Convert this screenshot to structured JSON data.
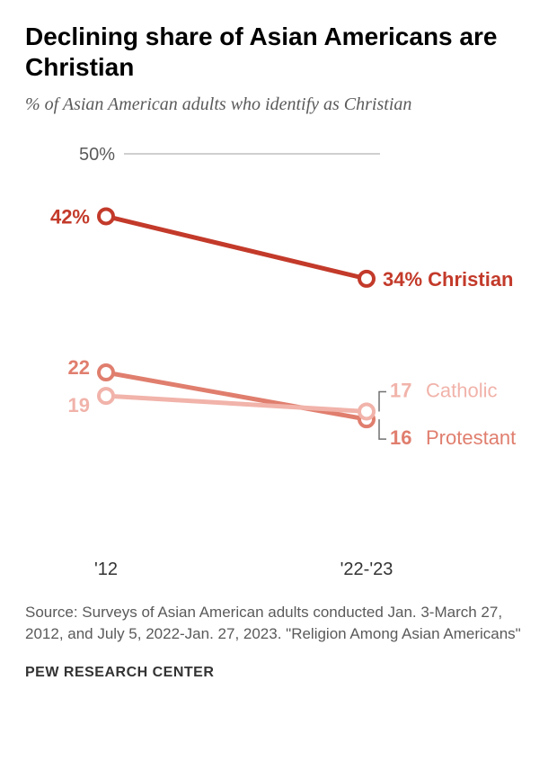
{
  "title": "Declining share of Asian Americans are Christian",
  "subtitle": "% of Asian American adults who identify as Christian",
  "title_fontsize": 28,
  "subtitle_fontsize": 20,
  "chart": {
    "type": "line",
    "x_categories": [
      "'12",
      "'22-'23"
    ],
    "x_positions": [
      90,
      380
    ],
    "y_axis": {
      "max_label": "50%",
      "max_value": 50,
      "min_value": 0,
      "gridline_color": "#cfcfcf",
      "gridline_y": 22,
      "label_color": "#5a5a5a",
      "label_fontsize": 20
    },
    "series": [
      {
        "name": "Christian",
        "color": "#c33a2a",
        "line_width": 5,
        "marker_stroke": 4,
        "marker_radius": 8,
        "points": [
          {
            "x": 90,
            "value": 42,
            "label": "42%"
          },
          {
            "x": 380,
            "value": 34,
            "label": "34%",
            "series_label": "Christian"
          }
        ]
      },
      {
        "name": "Protestant",
        "color": "#e07e6e",
        "line_width": 5,
        "marker_stroke": 4,
        "marker_radius": 8,
        "points": [
          {
            "x": 90,
            "value": 22,
            "label": "22"
          },
          {
            "x": 380,
            "value": 16,
            "label": "16",
            "series_label": "Protestant"
          }
        ]
      },
      {
        "name": "Catholic",
        "color": "#f1b3aa",
        "line_width": 5,
        "marker_stroke": 4,
        "marker_radius": 8,
        "points": [
          {
            "x": 90,
            "value": 19,
            "label": "19"
          },
          {
            "x": 380,
            "value": 17,
            "label": "17",
            "series_label": "Catholic"
          }
        ]
      }
    ],
    "axis_label_fontsize": 20,
    "axis_label_color": "#333333",
    "data_label_fontsize": 22,
    "series_label_fontsize": 22,
    "background": "#ffffff",
    "callout_line_color": "#707070",
    "callout_line_width": 1.5
  },
  "source_text": "Source: Surveys of Asian American adults conducted Jan. 3-March 27, 2012, and July 5, 2022-Jan. 27, 2023.\n\"Religion Among Asian Americans\"",
  "source_fontsize": 17,
  "attribution": "PEW RESEARCH CENTER",
  "attribution_fontsize": 16,
  "attribution_color": "#333333"
}
